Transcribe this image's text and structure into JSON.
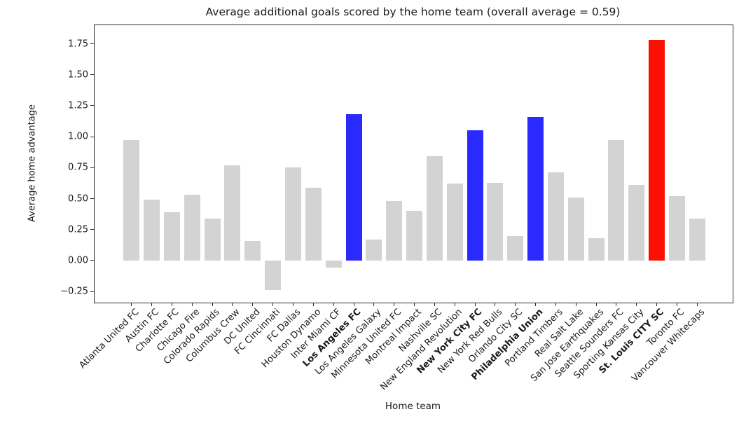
{
  "chart_data": {
    "type": "bar",
    "title": "Average additional goals scored by the home team (overall average = 0.59)",
    "xlabel": "Home team",
    "ylabel": "Average home advantage",
    "overall_average": 0.59,
    "ylim": [
      -0.34,
      1.9
    ],
    "yticks": [
      -0.25,
      0.0,
      0.25,
      0.5,
      0.75,
      1.0,
      1.25,
      1.5,
      1.75
    ],
    "grid": false,
    "legend": null,
    "palette": {
      "default": "#d3d3d3",
      "blue": "#2a2aff",
      "red": "#fb1103"
    },
    "teams": [
      {
        "name": "Atlanta United FC",
        "value": 0.97,
        "color": "default",
        "bold": false
      },
      {
        "name": "Austin FC",
        "value": 0.49,
        "color": "default",
        "bold": false
      },
      {
        "name": "Charlotte FC",
        "value": 0.39,
        "color": "default",
        "bold": false
      },
      {
        "name": "Chicago Fire",
        "value": 0.53,
        "color": "default",
        "bold": false
      },
      {
        "name": "Colorado Rapids",
        "value": 0.34,
        "color": "default",
        "bold": false
      },
      {
        "name": "Columbus Crew",
        "value": 0.77,
        "color": "default",
        "bold": false
      },
      {
        "name": "DC United",
        "value": 0.16,
        "color": "default",
        "bold": false
      },
      {
        "name": "FC Cincinnati",
        "value": -0.24,
        "color": "default",
        "bold": false
      },
      {
        "name": "FC Dallas",
        "value": 0.75,
        "color": "default",
        "bold": false
      },
      {
        "name": "Houston Dynamo",
        "value": 0.59,
        "color": "default",
        "bold": false
      },
      {
        "name": "Inter Miami CF",
        "value": -0.06,
        "color": "default",
        "bold": false
      },
      {
        "name": "Los Angeles FC",
        "value": 1.18,
        "color": "blue",
        "bold": true
      },
      {
        "name": "Los Angeles Galaxy",
        "value": 0.17,
        "color": "default",
        "bold": false
      },
      {
        "name": "Minnesota United FC",
        "value": 0.48,
        "color": "default",
        "bold": false
      },
      {
        "name": "Montreal Impact",
        "value": 0.4,
        "color": "default",
        "bold": false
      },
      {
        "name": "Nashville SC",
        "value": 0.84,
        "color": "default",
        "bold": false
      },
      {
        "name": "New England Revolution",
        "value": 0.62,
        "color": "default",
        "bold": false
      },
      {
        "name": "New York City FC",
        "value": 1.05,
        "color": "blue",
        "bold": true
      },
      {
        "name": "New York Red Bulls",
        "value": 0.63,
        "color": "default",
        "bold": false
      },
      {
        "name": "Orlando City SC",
        "value": 0.2,
        "color": "default",
        "bold": false
      },
      {
        "name": "Philadelphia Union",
        "value": 1.16,
        "color": "blue",
        "bold": true
      },
      {
        "name": "Portland Timbers",
        "value": 0.71,
        "color": "default",
        "bold": false
      },
      {
        "name": "Real Salt Lake",
        "value": 0.51,
        "color": "default",
        "bold": false
      },
      {
        "name": "San Jose Earthquakes",
        "value": 0.18,
        "color": "default",
        "bold": false
      },
      {
        "name": "Seattle Sounders FC",
        "value": 0.97,
        "color": "default",
        "bold": false
      },
      {
        "name": "Sporting Kansas City",
        "value": 0.61,
        "color": "default",
        "bold": false
      },
      {
        "name": "St. Louis CITY SC",
        "value": 1.78,
        "color": "red",
        "bold": true
      },
      {
        "name": "Toronto FC",
        "value": 0.52,
        "color": "default",
        "bold": false
      },
      {
        "name": "Vancouver Whitecaps",
        "value": 0.34,
        "color": "default",
        "bold": false
      }
    ]
  }
}
